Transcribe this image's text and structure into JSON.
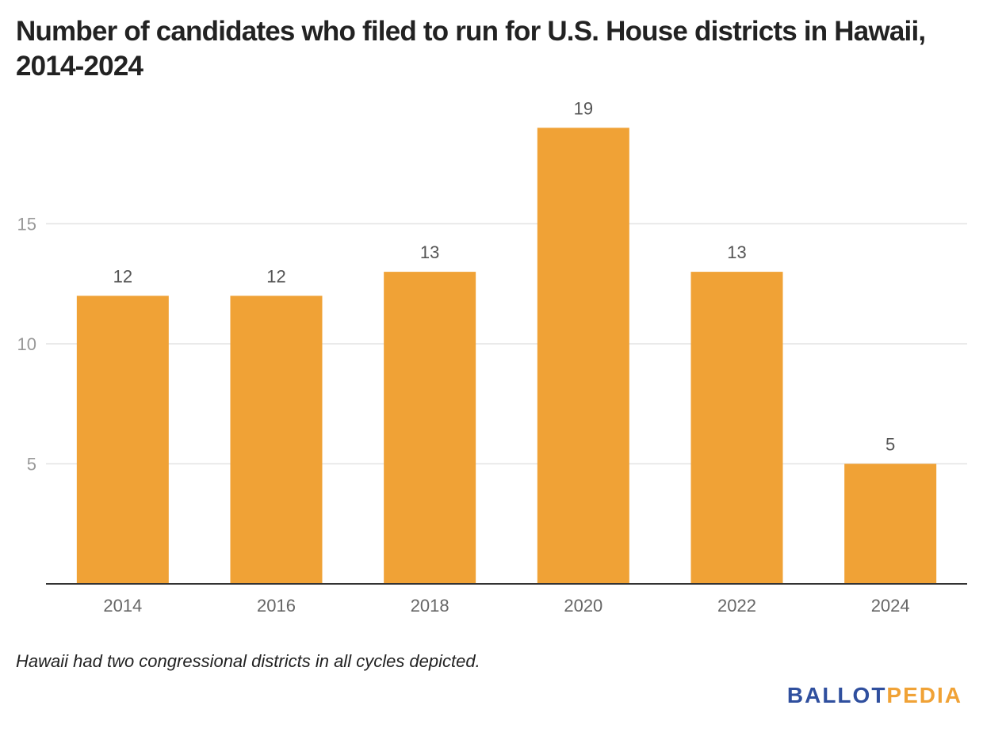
{
  "title": "Number of candidates who filed to run for U.S. House districts in Hawaii, 2014-2024",
  "note": "Hawaii had two congressional districts in all cycles depicted.",
  "brand": {
    "part1": "BALLOT",
    "part2": "PEDIA"
  },
  "colors": {
    "bar": "#f0a236",
    "grid": "#e3e3e3",
    "axis": "#333333",
    "tick_text": "#666666",
    "label_text": "#555555"
  },
  "chart_data": {
    "type": "bar",
    "categories": [
      "2014",
      "2016",
      "2018",
      "2020",
      "2022",
      "2024"
    ],
    "values": [
      12,
      12,
      13,
      19,
      13,
      5
    ],
    "yticks": [
      "5",
      "10",
      "15"
    ],
    "ylim": [
      0,
      20
    ],
    "grid": true,
    "legend": "none"
  }
}
